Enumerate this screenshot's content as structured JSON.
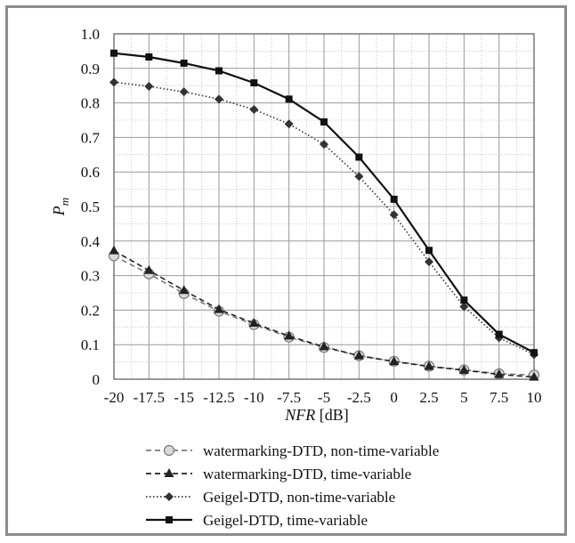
{
  "chart_data": {
    "type": "line",
    "title": "",
    "xlabel": "NFR [dB]",
    "xlabel_italic": "NFR",
    "xlabel_unit": " [dB]",
    "ylabel": "Pm",
    "ylabel_main": "P",
    "ylabel_sub": "m",
    "x": [
      -20,
      -17.5,
      -15,
      -12.5,
      -10,
      -7.5,
      -5,
      -2.5,
      0,
      2.5,
      5,
      7.5,
      10
    ],
    "x_tick_labels": [
      "-20",
      "-17.5",
      "-15",
      "-12.5",
      "-10",
      "-7.5",
      "-5",
      "-2.5",
      "0",
      "2.5",
      "5",
      "7.5",
      "10"
    ],
    "xlim": [
      -20,
      10
    ],
    "ylim": [
      0,
      1.0
    ],
    "y_ticks": [
      0,
      0.1,
      0.2,
      0.3,
      0.4,
      0.5,
      0.6,
      0.7,
      0.8,
      0.9,
      1.0
    ],
    "y_tick_labels": [
      "0",
      "0.1",
      "0.2",
      "0.3",
      "0.4",
      "0.5",
      "0.6",
      "0.7",
      "0.8",
      "0.9",
      "1.0"
    ],
    "grid": true,
    "legend_position": "bottom",
    "series": [
      {
        "name": "watermarking-DTD, non-time-variable",
        "marker": "circle",
        "dash": "dashed",
        "color": "#7a7a7a",
        "values": [
          0.357,
          0.305,
          0.248,
          0.197,
          0.158,
          0.122,
          0.092,
          0.068,
          0.052,
          0.038,
          0.027,
          0.016,
          0.012
        ]
      },
      {
        "name": "watermarking-DTD, time-variable",
        "marker": "triangle",
        "dash": "dashed",
        "color": "#222222",
        "values": [
          0.372,
          0.315,
          0.257,
          0.202,
          0.162,
          0.125,
          0.094,
          0.068,
          0.051,
          0.037,
          0.026,
          0.014,
          0.006
        ]
      },
      {
        "name": "Geigel-DTD, non-time-variable",
        "marker": "diamond",
        "dash": "dotted",
        "color": "#333333",
        "values": [
          0.86,
          0.848,
          0.832,
          0.811,
          0.781,
          0.739,
          0.68,
          0.587,
          0.476,
          0.34,
          0.21,
          0.12,
          0.071
        ]
      },
      {
        "name": "Geigel-DTD, time-variable",
        "marker": "square",
        "dash": "solid",
        "color": "#111111",
        "values": [
          0.944,
          0.933,
          0.915,
          0.893,
          0.858,
          0.811,
          0.745,
          0.643,
          0.521,
          0.373,
          0.229,
          0.13,
          0.077
        ]
      }
    ]
  }
}
